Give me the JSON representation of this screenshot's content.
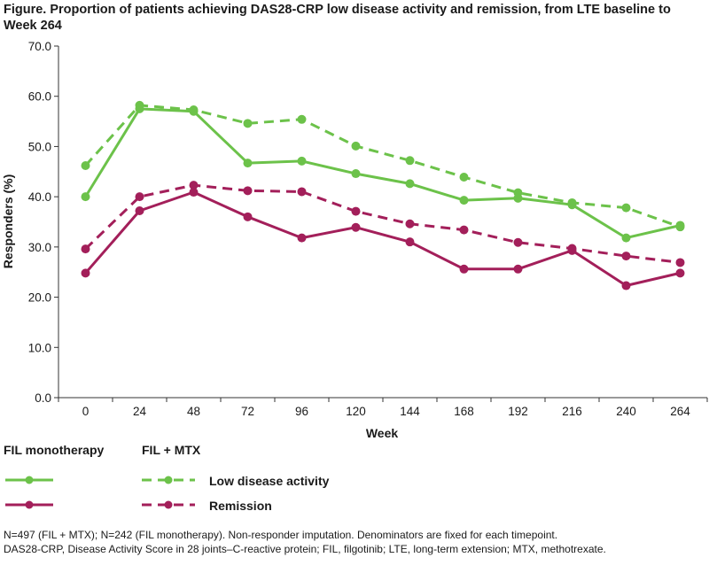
{
  "figure_title": "Figure. Proportion of patients achieving DAS28-CRP low disease activity and remission, from LTE baseline to Week 264",
  "chart_data": {
    "type": "line",
    "title": "Figure. Proportion of patients achieving DAS28-CRP low disease activity and remission, from LTE baseline to Week 264",
    "xlabel": "Week",
    "ylabel": "Responders (%)",
    "x": [
      0,
      24,
      48,
      72,
      96,
      120,
      144,
      168,
      192,
      216,
      240,
      264
    ],
    "x_tick_labels": [
      "0",
      "24",
      "48",
      "72",
      "96",
      "120",
      "144",
      "168",
      "192",
      "216",
      "240",
      "264"
    ],
    "ylim": [
      0,
      70
    ],
    "y_ticks": [
      0,
      10,
      20,
      30,
      40,
      50,
      60,
      70
    ],
    "y_tick_labels": [
      "0.0",
      "10.0",
      "20.0",
      "30.0",
      "40.0",
      "50.0",
      "60.0",
      "70.0"
    ],
    "grid": false,
    "series": [
      {
        "name": "FIL monotherapy – Low disease activity",
        "color": "#6cc24a",
        "dash": false,
        "values": [
          40.0,
          57.5,
          57.0,
          46.7,
          47.1,
          44.6,
          42.6,
          39.3,
          39.7,
          38.4,
          31.8,
          34.3
        ]
      },
      {
        "name": "FIL + MTX – Low disease activity",
        "color": "#6cc24a",
        "dash": true,
        "values": [
          46.2,
          58.2,
          57.3,
          54.6,
          55.4,
          50.1,
          47.2,
          43.9,
          40.8,
          38.8,
          37.8,
          34.0
        ]
      },
      {
        "name": "FIL monotherapy – Remission",
        "color": "#a31f5a",
        "dash": false,
        "values": [
          24.8,
          37.2,
          40.9,
          36.0,
          31.8,
          33.9,
          31.0,
          25.6,
          25.6,
          29.3,
          22.3,
          24.8
        ]
      },
      {
        "name": "FIL + MTX – Remission",
        "color": "#a31f5a",
        "dash": true,
        "values": [
          29.6,
          40.0,
          42.3,
          41.2,
          41.0,
          37.1,
          34.6,
          33.4,
          30.9,
          29.7,
          28.2,
          26.9
        ]
      }
    ]
  },
  "legend": {
    "col1_header": "FIL monotherapy",
    "col2_header": "FIL + MTX",
    "low_label": "Low disease activity",
    "rem_label": "Remission"
  },
  "footnote": {
    "line1": "N=497 (FIL + MTX); N=242 (FIL monotherapy). Non-responder imputation.  Denominators are fixed for each timepoint.",
    "line2": "DAS28-CRP, Disease Activity Score in 28 joints–C-reactive protein; FIL, filgotinib;  LTE, long-term extension; MTX, methotrexate."
  }
}
